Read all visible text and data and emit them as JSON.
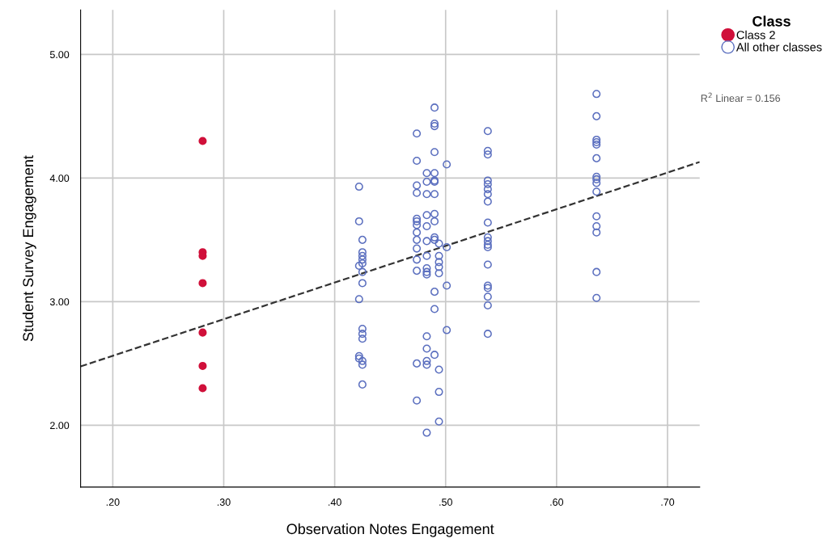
{
  "chart_data": {
    "type": "scatter",
    "xlabel": "Observation Notes Engagement",
    "ylabel": "Student Survey Engagement",
    "legend_title": "Class",
    "legend": "top right",
    "grid": true,
    "marker": "circle",
    "xlim": [
      0.171,
      0.729
    ],
    "ylim": [
      1.5,
      5.36
    ],
    "xticks": [
      {
        "value": 0.2,
        "label": ".20"
      },
      {
        "value": 0.3,
        "label": ".30"
      },
      {
        "value": 0.4,
        "label": ".40"
      },
      {
        "value": 0.5,
        "label": ".50"
      },
      {
        "value": 0.6,
        "label": ".60"
      },
      {
        "value": 0.7,
        "label": ".70"
      }
    ],
    "yticks": [
      {
        "value": 2,
        "label": "2.00"
      },
      {
        "value": 3,
        "label": "3.00"
      },
      {
        "value": 4,
        "label": "4.00"
      },
      {
        "value": 5,
        "label": "5.00"
      }
    ],
    "annotations": [
      "R$^{2}$ Linear = 0.156"
    ],
    "series": [
      {
        "name": "Class 2",
        "color": "#d0103a",
        "x": [
          0.281,
          0.281,
          0.281,
          0.281,
          0.281,
          0.281,
          0.281
        ],
        "values": [
          4.3,
          3.4,
          3.37,
          3.15,
          2.75,
          2.48,
          2.3
        ]
      },
      {
        "name": "All other classes",
        "color": "#5b6fbf",
        "x": [
          0.422,
          0.422,
          0.425,
          0.425,
          0.425,
          0.425,
          0.425,
          0.422,
          0.425,
          0.425,
          0.422,
          0.425,
          0.425,
          0.425,
          0.422,
          0.422,
          0.425,
          0.425,
          0.425,
          0.474,
          0.474,
          0.474,
          0.474,
          0.474,
          0.474,
          0.474,
          0.474,
          0.474,
          0.474,
          0.474,
          0.474,
          0.474,
          0.474,
          0.483,
          0.483,
          0.483,
          0.483,
          0.483,
          0.483,
          0.483,
          0.483,
          0.483,
          0.483,
          0.483,
          0.483,
          0.483,
          0.483,
          0.483,
          0.49,
          0.49,
          0.49,
          0.49,
          0.49,
          0.49,
          0.49,
          0.49,
          0.49,
          0.49,
          0.49,
          0.49,
          0.49,
          0.49,
          0.49,
          0.494,
          0.494,
          0.494,
          0.494,
          0.494,
          0.494,
          0.494,
          0.494,
          0.501,
          0.501,
          0.501,
          0.501,
          0.538,
          0.538,
          0.538,
          0.538,
          0.538,
          0.538,
          0.538,
          0.538,
          0.538,
          0.538,
          0.538,
          0.538,
          0.538,
          0.538,
          0.538,
          0.538,
          0.538,
          0.538,
          0.538,
          0.636,
          0.636,
          0.636,
          0.636,
          0.636,
          0.636,
          0.636,
          0.636,
          0.636,
          0.636,
          0.636,
          0.636,
          0.636,
          0.636,
          0.636
        ],
        "values": [
          3.93,
          3.65,
          3.5,
          3.4,
          3.37,
          3.34,
          3.31,
          3.29,
          3.24,
          3.15,
          3.02,
          2.78,
          2.74,
          2.7,
          2.56,
          2.54,
          2.52,
          2.49,
          2.33,
          4.36,
          4.14,
          3.94,
          3.88,
          3.67,
          3.65,
          3.62,
          3.56,
          3.5,
          3.43,
          3.34,
          3.25,
          2.5,
          2.2,
          4.04,
          3.97,
          3.87,
          3.7,
          3.61,
          3.49,
          3.37,
          3.27,
          3.24,
          3.22,
          2.72,
          2.62,
          2.52,
          2.49,
          1.94,
          4.57,
          4.44,
          4.42,
          4.21,
          4.04,
          3.98,
          3.97,
          3.87,
          3.71,
          3.65,
          3.52,
          3.5,
          3.08,
          2.94,
          2.57,
          3.47,
          3.37,
          3.32,
          3.28,
          3.23,
          2.45,
          2.27,
          2.03,
          4.11,
          3.44,
          3.13,
          2.77,
          4.38,
          4.22,
          4.19,
          3.98,
          3.95,
          3.91,
          3.87,
          3.81,
          3.64,
          3.49,
          3.46,
          3.44,
          3.3,
          3.13,
          3.11,
          3.04,
          2.97,
          2.74,
          3.52,
          4.68,
          4.5,
          4.31,
          4.29,
          4.27,
          4.16,
          4.01,
          3.99,
          3.96,
          3.89,
          3.69,
          3.61,
          3.56,
          3.24,
          3.03
        ]
      },
      {
        "type": "line",
        "color": "#333333",
        "line_style": "dashed",
        "marker": "none",
        "x": [
          0.171,
          0.729
        ],
        "values": [
          2.476,
          4.13
        ]
      }
    ]
  }
}
